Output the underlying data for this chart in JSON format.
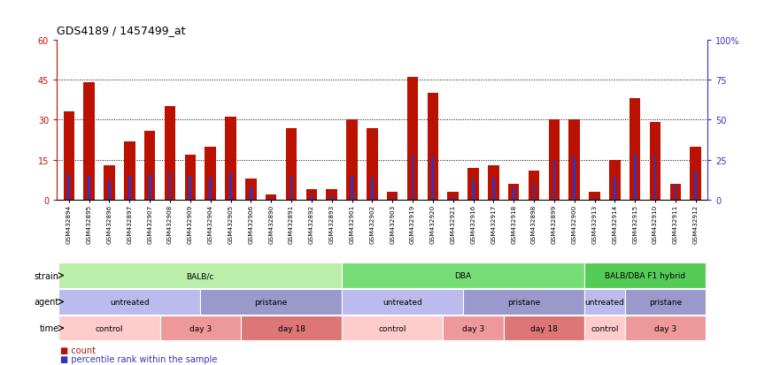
{
  "title": "GDS4189 / 1457499_at",
  "samples": [
    "GSM432894",
    "GSM432895",
    "GSM432896",
    "GSM432897",
    "GSM432907",
    "GSM432908",
    "GSM432909",
    "GSM432904",
    "GSM432905",
    "GSM432906",
    "GSM432890",
    "GSM432891",
    "GSM432892",
    "GSM432893",
    "GSM432901",
    "GSM432902",
    "GSM432903",
    "GSM432919",
    "GSM432920",
    "GSM432921",
    "GSM432916",
    "GSM432917",
    "GSM432918",
    "GSM432898",
    "GSM432899",
    "GSM432900",
    "GSM432913",
    "GSM432914",
    "GSM432915",
    "GSM432910",
    "GSM432911",
    "GSM432912"
  ],
  "count": [
    33,
    44,
    13,
    22,
    26,
    35,
    17,
    20,
    31,
    8,
    2,
    27,
    4,
    4,
    30,
    27,
    3,
    46,
    40,
    3,
    12,
    13,
    6,
    11,
    30,
    30,
    3,
    15,
    38,
    29,
    6,
    20
  ],
  "percentile": [
    16,
    15,
    12,
    15,
    16,
    17,
    15,
    14,
    17,
    8,
    1,
    15,
    3,
    3,
    15,
    14,
    1,
    28,
    27,
    2,
    13,
    14,
    8,
    10,
    25,
    27,
    1,
    14,
    28,
    28,
    10,
    18
  ],
  "ylim_left": [
    0,
    60
  ],
  "ylim_right": [
    0,
    100
  ],
  "yticks_left": [
    0,
    15,
    30,
    45,
    60
  ],
  "yticks_right": [
    0,
    25,
    50,
    75,
    100
  ],
  "bar_color_red": "#bb1100",
  "bar_color_blue": "#3333bb",
  "strain_groups": [
    {
      "label": "BALB/c",
      "start": 0,
      "end": 14,
      "color": "#bbeeaa"
    },
    {
      "label": "DBA",
      "start": 14,
      "end": 26,
      "color": "#77dd77"
    },
    {
      "label": "BALB/DBA F1 hybrid",
      "start": 26,
      "end": 32,
      "color": "#55cc55"
    }
  ],
  "agent_groups": [
    {
      "label": "untreated",
      "start": 0,
      "end": 7,
      "color": "#bbbbee"
    },
    {
      "label": "pristane",
      "start": 7,
      "end": 14,
      "color": "#9999cc"
    },
    {
      "label": "untreated",
      "start": 14,
      "end": 20,
      "color": "#bbbbee"
    },
    {
      "label": "pristane",
      "start": 20,
      "end": 26,
      "color": "#9999cc"
    },
    {
      "label": "untreated",
      "start": 26,
      "end": 28,
      "color": "#bbbbee"
    },
    {
      "label": "pristane",
      "start": 28,
      "end": 32,
      "color": "#9999cc"
    }
  ],
  "time_groups": [
    {
      "label": "control",
      "start": 0,
      "end": 5,
      "color": "#ffcccc"
    },
    {
      "label": "day 3",
      "start": 5,
      "end": 9,
      "color": "#ee9999"
    },
    {
      "label": "day 18",
      "start": 9,
      "end": 14,
      "color": "#dd7777"
    },
    {
      "label": "control",
      "start": 14,
      "end": 19,
      "color": "#ffcccc"
    },
    {
      "label": "day 3",
      "start": 19,
      "end": 22,
      "color": "#ee9999"
    },
    {
      "label": "day 18",
      "start": 22,
      "end": 26,
      "color": "#dd7777"
    },
    {
      "label": "control",
      "start": 26,
      "end": 28,
      "color": "#ffcccc"
    },
    {
      "label": "day 3",
      "start": 28,
      "end": 32,
      "color": "#ee9999"
    }
  ],
  "row_labels": [
    "strain",
    "agent",
    "time"
  ],
  "legend_count_label": "count",
  "legend_percentile_label": "percentile rank within the sample"
}
